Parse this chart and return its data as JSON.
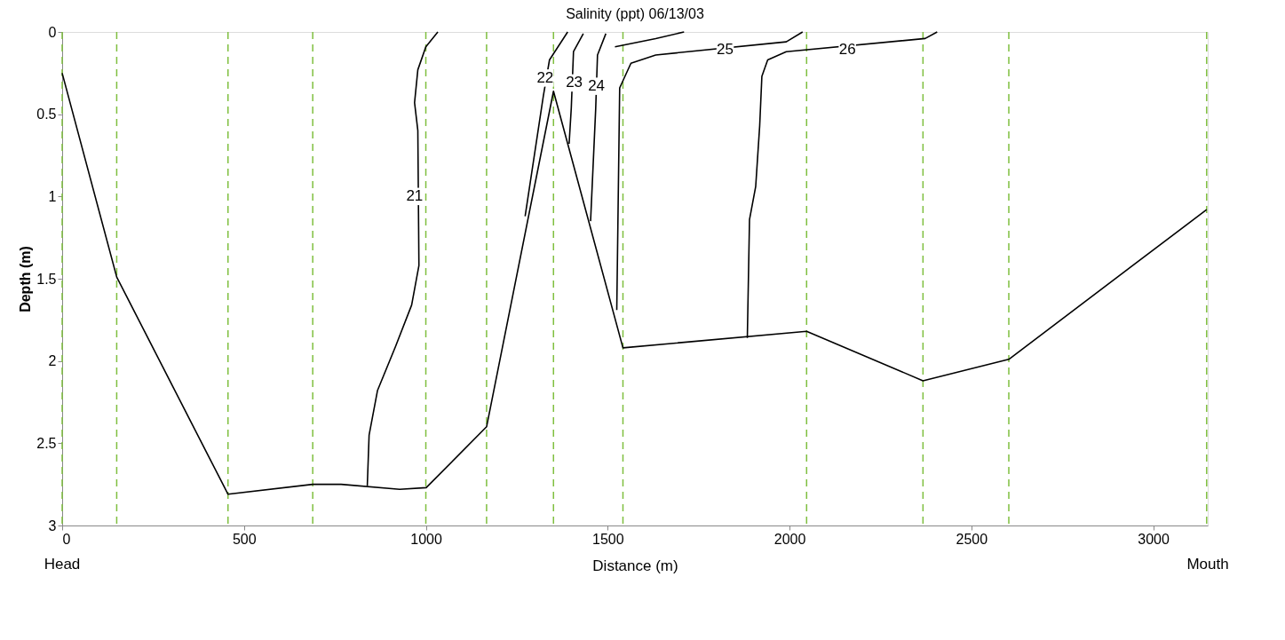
{
  "chart_data": {
    "type": "line",
    "title": "Salinity (ppt) 06/13/03",
    "xlabel": "Distance (m)",
    "ylabel": "Depth (m)",
    "xlim": [
      0,
      3150
    ],
    "ylim": [
      3,
      0
    ],
    "xticks": [
      0,
      500,
      1000,
      1500,
      2000,
      2500,
      3000
    ],
    "yticks": [
      0,
      0.5,
      1,
      1.5,
      2,
      2.5,
      3
    ],
    "grid": false,
    "marker": "none",
    "line_style": "solid",
    "series": [
      {
        "color": "#000000",
        "x": [
          0,
          150,
          456,
          689,
          767,
          928,
          1001,
          1167,
          1351,
          1542,
          2047,
          2367,
          2603,
          3147
        ],
        "values": [
          0.25,
          1.49,
          2.81,
          2.75,
          2.75,
          2.78,
          2.77,
          2.4,
          0.36,
          1.92,
          1.82,
          2.12,
          1.99,
          1.08
        ]
      },
      {
        "color": "#000000",
        "x": [
          1033,
          1000,
          978,
          969,
          978,
          981,
          961,
          917,
          867,
          844,
          839
        ],
        "values": [
          0,
          0.09,
          0.23,
          0.43,
          0.6,
          1.42,
          1.66,
          1.91,
          2.18,
          2.45,
          2.76
        ]
      },
      {
        "color": "#000000",
        "x": [
          1390,
          1340,
          1323,
          1273
        ],
        "values": [
          0,
          0.17,
          0.39,
          1.12
        ]
      },
      {
        "color": "#000000",
        "x": [
          1433,
          1406,
          1400,
          1394
        ],
        "values": [
          0.01,
          0.12,
          0.46,
          0.68
        ]
      },
      {
        "color": "#000000",
        "x": [
          1495,
          1472,
          1467,
          1453
        ],
        "values": [
          0.01,
          0.14,
          0.47,
          1.15
        ]
      },
      {
        "color": "#000000",
        "x": [
          1520,
          1632,
          1710
        ],
        "values": [
          0.09,
          0.04,
          0
        ]
      },
      {
        "color": "#000000",
        "x": [
          1525,
          1533,
          1564,
          1632,
          1991,
          2036
        ],
        "values": [
          1.69,
          0.34,
          0.19,
          0.14,
          0.06,
          0
        ]
      },
      {
        "color": "#000000",
        "x": [
          1884,
          1890,
          1907,
          1918,
          1924,
          1940,
          1991,
          2373,
          2406
        ],
        "values": [
          1.86,
          1.14,
          0.94,
          0.57,
          0.27,
          0.17,
          0.12,
          0.04,
          0
        ]
      }
    ],
    "ref_lines": [
      {
        "axis": "x",
        "value": 0,
        "color": "#7fbf3f",
        "line_style": "dashed"
      },
      {
        "axis": "x",
        "value": 150,
        "color": "#7fbf3f",
        "line_style": "dashed"
      },
      {
        "axis": "x",
        "value": 456,
        "color": "#7fbf3f",
        "line_style": "dashed"
      },
      {
        "axis": "x",
        "value": 689,
        "color": "#7fbf3f",
        "line_style": "dashed"
      },
      {
        "axis": "x",
        "value": 1000,
        "color": "#7fbf3f",
        "line_style": "dashed"
      },
      {
        "axis": "x",
        "value": 1167,
        "color": "#7fbf3f",
        "line_style": "dashed"
      },
      {
        "axis": "x",
        "value": 1351,
        "color": "#7fbf3f",
        "line_style": "dashed"
      },
      {
        "axis": "x",
        "value": 1542,
        "color": "#7fbf3f",
        "line_style": "dashed"
      },
      {
        "axis": "x",
        "value": 2047,
        "color": "#7fbf3f",
        "line_style": "dashed"
      },
      {
        "axis": "x",
        "value": 2367,
        "color": "#7fbf3f",
        "line_style": "dashed"
      },
      {
        "axis": "x",
        "value": 2603,
        "color": "#7fbf3f",
        "line_style": "dashed"
      },
      {
        "axis": "x",
        "value": 3147,
        "color": "#7fbf3f",
        "line_style": "dashed"
      }
    ],
    "annotations": [
      {
        "text": "21",
        "x": 969,
        "y": 1.0
      },
      {
        "text": "22",
        "x": 1328,
        "y": 0.28
      },
      {
        "text": "23",
        "x": 1408,
        "y": 0.31
      },
      {
        "text": "24",
        "x": 1469,
        "y": 0.33
      },
      {
        "text": "25",
        "x": 1823,
        "y": 0.11
      },
      {
        "text": "26",
        "x": 2159,
        "y": 0.11
      },
      "Head",
      "Mouth"
    ]
  }
}
